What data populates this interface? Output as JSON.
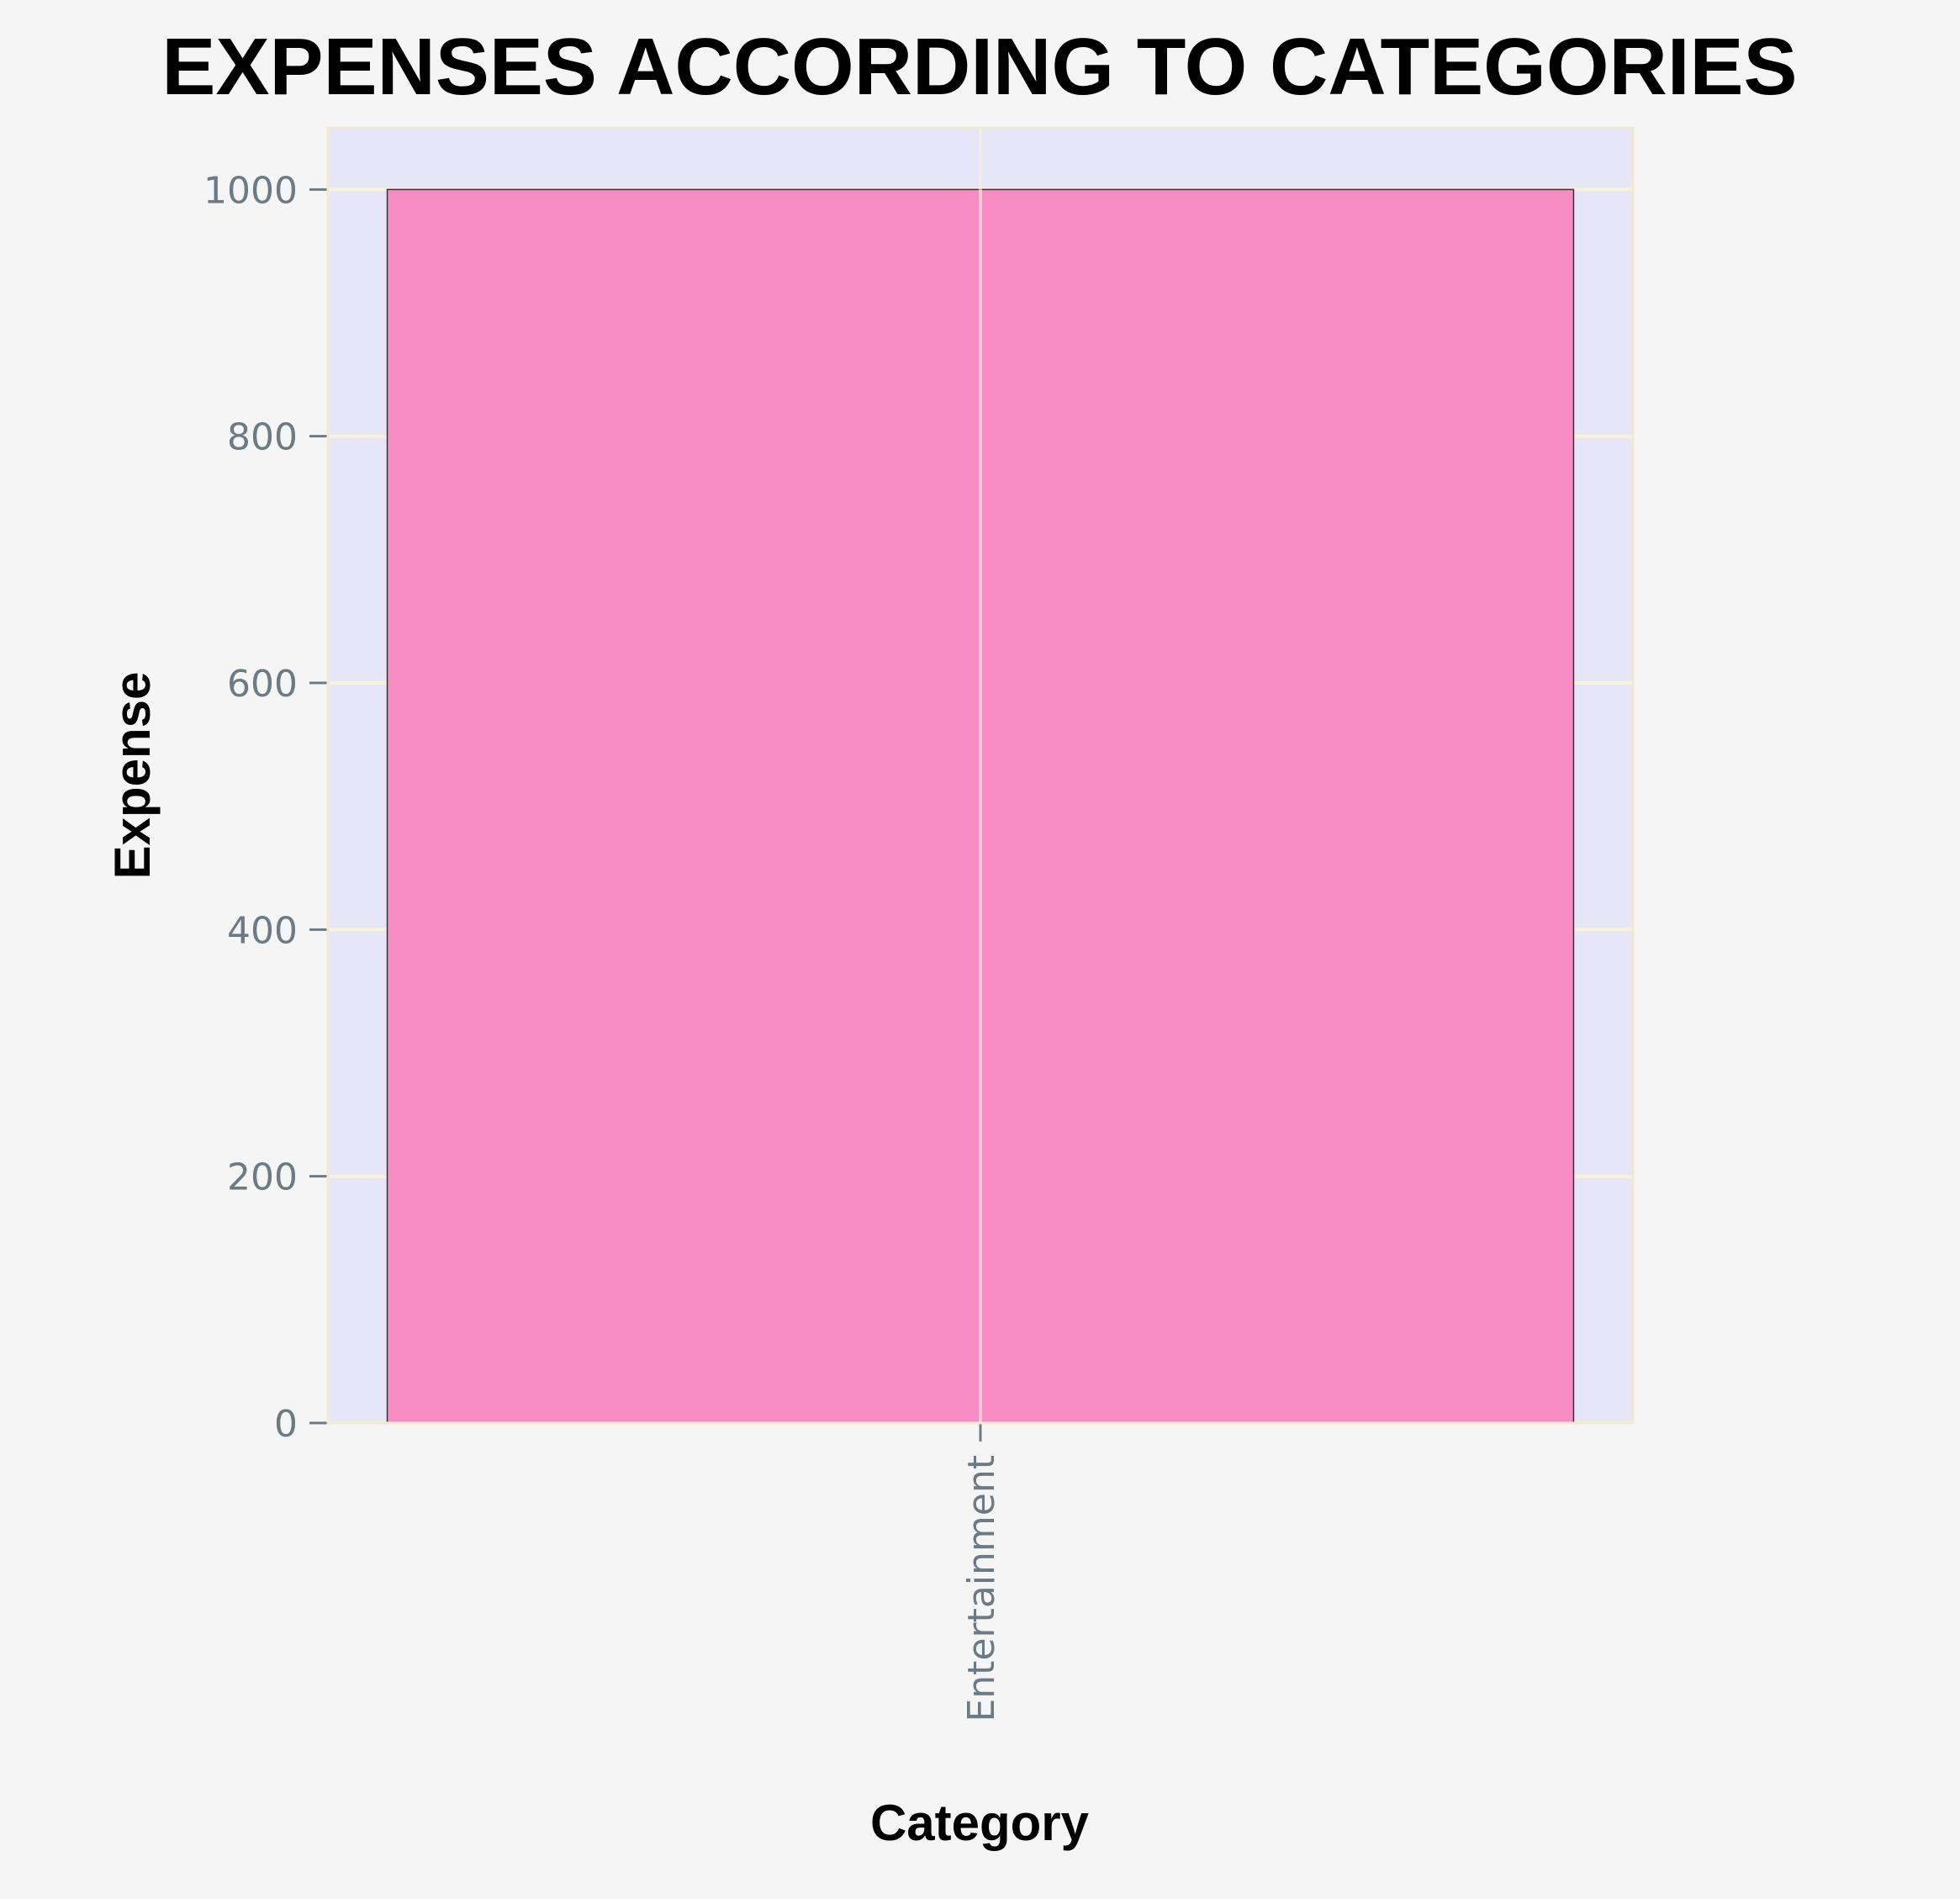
{
  "chart_data": {
    "type": "bar",
    "title": "EXPENSES ACCORDING TO CATEGORIES",
    "xlabel": "Category",
    "ylabel": "Expense",
    "categories": [
      "Entertainment"
    ],
    "values": [
      1000
    ],
    "ylim": [
      0,
      1050
    ],
    "yticks": [
      0,
      200,
      400,
      600,
      800,
      1000
    ],
    "grid": true,
    "legend": "none",
    "colors": {
      "bar": "#f78dc4",
      "plot_background": "#e6e6f8",
      "figure_background": "#f5f5f5",
      "grid": "#f8f2d8",
      "tick_label": "#6b7b86"
    }
  }
}
